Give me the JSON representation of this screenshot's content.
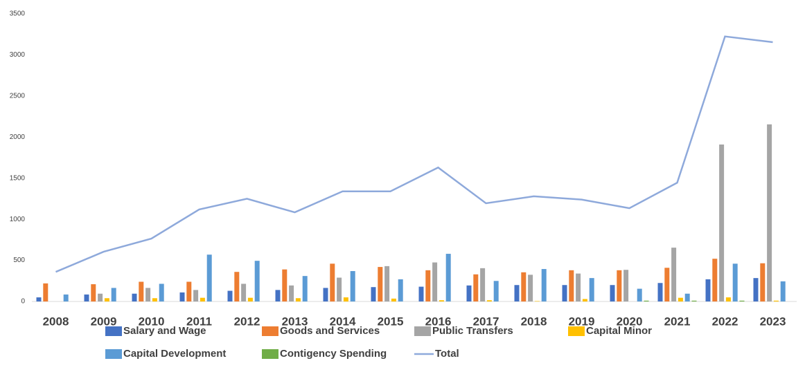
{
  "chart_data": {
    "type": "bar",
    "categories": [
      "2008",
      "2009",
      "2010",
      "2011",
      "2012",
      "2013",
      "2014",
      "2015",
      "2016",
      "2017",
      "2018",
      "2019",
      "2020",
      "2021",
      "2022",
      "2023"
    ],
    "series": [
      {
        "name": "Salary and Wage",
        "color": "#4472c4",
        "values": [
          50,
          85,
          95,
          110,
          130,
          140,
          165,
          175,
          180,
          195,
          200,
          200,
          200,
          225,
          270,
          285
        ]
      },
      {
        "name": "Goods and Services",
        "color": "#ed7d31",
        "values": [
          220,
          210,
          240,
          240,
          360,
          390,
          460,
          420,
          380,
          330,
          355,
          380,
          380,
          410,
          520,
          465
        ]
      },
      {
        "name": "Public Transfers",
        "color": "#a5a5a5",
        "values": [
          0,
          95,
          165,
          140,
          215,
          195,
          290,
          430,
          475,
          405,
          325,
          340,
          385,
          655,
          1910,
          2155
        ]
      },
      {
        "name": "Capital Minor",
        "color": "#ffc000",
        "values": [
          0,
          40,
          40,
          45,
          45,
          40,
          50,
          35,
          15,
          15,
          5,
          30,
          0,
          45,
          50,
          10
        ]
      },
      {
        "name": "Capital Development",
        "color": "#5b9bd5",
        "values": [
          85,
          165,
          215,
          570,
          495,
          310,
          370,
          270,
          580,
          250,
          395,
          285,
          155,
          95,
          460,
          245
        ]
      },
      {
        "name": "Contigency Spending",
        "color": "#70ad47",
        "values": [
          0,
          0,
          0,
          0,
          0,
          0,
          0,
          0,
          0,
          0,
          0,
          0,
          10,
          10,
          10,
          0
        ]
      },
      {
        "name": "Total",
        "color": "#8ea9db",
        "type": "line",
        "values": [
          360,
          605,
          765,
          1120,
          1250,
          1085,
          1340,
          1340,
          1630,
          1195,
          1280,
          1240,
          1135,
          1445,
          3225,
          3155
        ]
      }
    ],
    "ylim": [
      0,
      3500
    ],
    "yticks": [
      0,
      500,
      1000,
      1500,
      2000,
      2500,
      3000,
      3500
    ],
    "legend": "bottom"
  }
}
